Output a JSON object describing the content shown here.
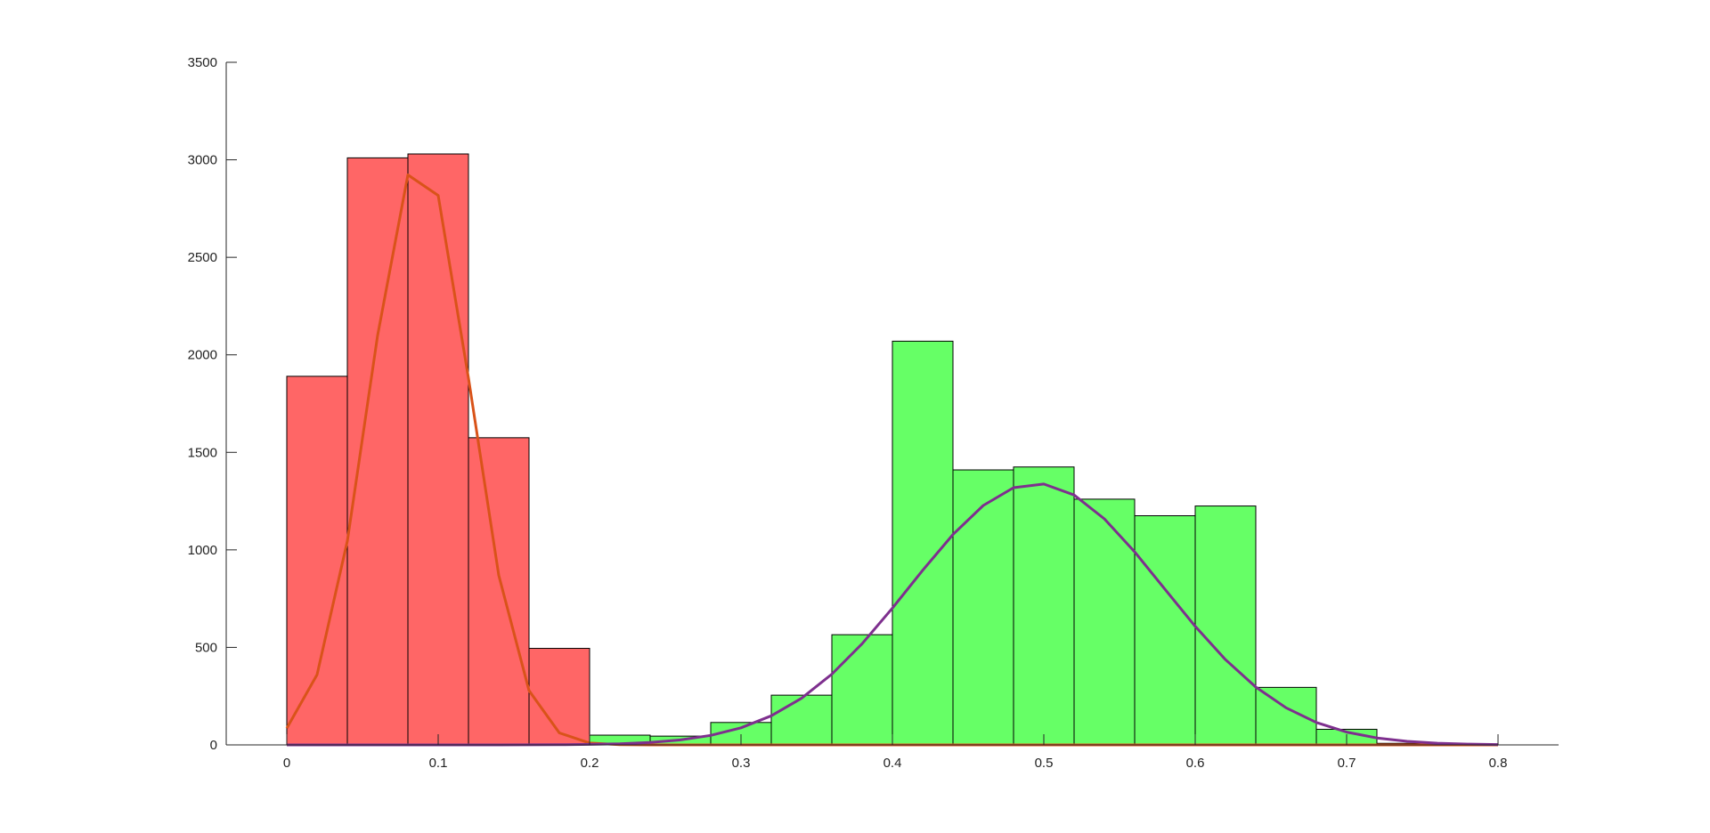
{
  "chart_data": {
    "type": "bar",
    "title": "",
    "xlabel": "",
    "ylabel": "",
    "xlim": [
      -0.04,
      0.84
    ],
    "ylim": [
      0,
      3500
    ],
    "x_ticks": [
      "0",
      "0.1",
      "0.2",
      "0.3",
      "0.4",
      "0.5",
      "0.6",
      "0.7",
      "0.8"
    ],
    "y_ticks": [
      "0",
      "500",
      "1000",
      "1500",
      "2000",
      "2500",
      "3000",
      "3500"
    ],
    "grid": false,
    "legend": "none",
    "bin_width": 0.04,
    "series": [
      {
        "color": "#ff6666",
        "bins": [
          {
            "start": 0.0,
            "count": 1890
          },
          {
            "start": 0.04,
            "count": 3010
          },
          {
            "start": 0.08,
            "count": 3030
          },
          {
            "start": 0.12,
            "count": 1575
          },
          {
            "start": 0.16,
            "count": 495
          }
        ]
      },
      {
        "color": "#66ff66",
        "bins": [
          {
            "start": 0.2,
            "count": 50
          },
          {
            "start": 0.24,
            "count": 45
          },
          {
            "start": 0.28,
            "count": 115
          },
          {
            "start": 0.32,
            "count": 255
          },
          {
            "start": 0.36,
            "count": 565
          },
          {
            "start": 0.4,
            "count": 2070
          },
          {
            "start": 0.44,
            "count": 1410
          },
          {
            "start": 0.48,
            "count": 1425
          },
          {
            "start": 0.52,
            "count": 1260
          },
          {
            "start": 0.56,
            "count": 1175
          },
          {
            "start": 0.6,
            "count": 1225
          },
          {
            "start": 0.64,
            "count": 295
          },
          {
            "start": 0.68,
            "count": 80
          },
          {
            "start": 0.72,
            "count": 8
          },
          {
            "start": 0.76,
            "count": 3
          }
        ]
      }
    ],
    "fits": [
      {
        "type": "normal",
        "mean": 0.088,
        "sd": 0.033,
        "peak": 3010,
        "x_range": [
          0,
          0.8
        ],
        "color": "#d95319"
      },
      {
        "type": "normal",
        "mean": 0.495,
        "sd": 0.0835,
        "peak": 1340,
        "x_range": [
          0,
          0.8
        ],
        "color": "#7e2f8e"
      }
    ]
  }
}
